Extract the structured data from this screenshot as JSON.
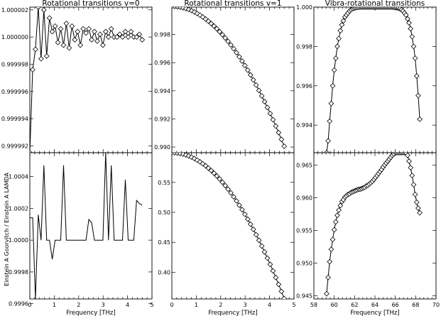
{
  "ylabel": "Einstein A Goorvitch / Einstein A LAMDA",
  "chart_data": [
    {
      "type": "line",
      "panel": "top-left",
      "title": "Rotational transitions v=0",
      "xlim": [
        0,
        5
      ],
      "ylim": [
        0.9999915,
        1.0000022
      ],
      "xticks": [
        0,
        1,
        2,
        3,
        4,
        5
      ],
      "yticks": [
        0.999992,
        0.999994,
        0.999996,
        0.999998,
        1.0,
        1.000002
      ],
      "ytick_labels": [
        "0.999992",
        "0.999994",
        "0.999996",
        "0.999998",
        "1.000000",
        "1.000002"
      ],
      "xtick_labels": [],
      "markers": true,
      "x": [
        0.0,
        0.115,
        0.23,
        0.345,
        0.46,
        0.575,
        0.69,
        0.805,
        0.92,
        1.035,
        1.15,
        1.265,
        1.38,
        1.495,
        1.61,
        1.725,
        1.84,
        1.955,
        2.07,
        2.185,
        2.3,
        2.415,
        2.53,
        2.645,
        2.76,
        2.875,
        2.99,
        3.105,
        3.22,
        3.335,
        3.45,
        3.565,
        3.68,
        3.795,
        3.91,
        4.025,
        4.14,
        4.255,
        4.37,
        4.485,
        4.6
      ],
      "y": [
        0.9999915,
        0.9999976,
        0.9999991,
        1.0000022,
        0.9999984,
        1.000002,
        0.9999986,
        1.0000014,
        1.0000004,
        1.0000008,
        0.9999996,
        1.0000006,
        0.9999994,
        1.000001,
        0.9999992,
        1.0000008,
        0.9999998,
        1.0000004,
        0.9999994,
        1.0000006,
        1.0000003,
        1.0000006,
        0.9999998,
        1.0000004,
        0.9999997,
        1.0000002,
        0.9999994,
        1.0000004,
        1.0,
        1.0000006,
        1.0,
        1.0,
        1.0000002,
        1.0,
        1.0000004,
        1.0,
        1.0000004,
        1.0,
        1.0,
        1.0000002,
        0.9999998
      ]
    },
    {
      "type": "line",
      "panel": "top-center",
      "title": "Rotational transitions v=1",
      "xlim": [
        0,
        5
      ],
      "ylim": [
        0.9896,
        0.99995
      ],
      "xticks": [
        0,
        1,
        2,
        3,
        4,
        5
      ],
      "yticks": [
        0.99,
        0.992,
        0.994,
        0.996,
        0.998
      ],
      "ytick_labels": [
        "0.990",
        "0.992",
        "0.994",
        "0.996",
        "0.998"
      ],
      "xtick_labels": [],
      "markers": true,
      "model": "y = 1 - 0.00047 * x^2",
      "x": [
        0.0,
        0.115,
        0.23,
        0.345,
        0.46,
        0.575,
        0.69,
        0.805,
        0.92,
        1.035,
        1.15,
        1.265,
        1.38,
        1.495,
        1.61,
        1.725,
        1.84,
        1.955,
        2.07,
        2.185,
        2.3,
        2.415,
        2.53,
        2.645,
        2.76,
        2.875,
        2.99,
        3.105,
        3.22,
        3.335,
        3.45,
        3.565,
        3.68,
        3.795,
        3.91,
        4.025,
        4.14,
        4.255,
        4.37,
        4.485,
        4.6
      ]
    },
    {
      "type": "line",
      "panel": "top-right",
      "title": "Vibra-rotational transitions",
      "xlim": [
        58,
        70
      ],
      "ylim": [
        0.9926,
        1.0
      ],
      "xticks": [
        58,
        60,
        62,
        64,
        66,
        68,
        70
      ],
      "yticks": [
        0.994,
        0.996,
        0.998,
        1.0
      ],
      "ytick_labels": [
        "0.994",
        "0.996",
        "0.998",
        "1.000"
      ],
      "xtick_labels": [],
      "markers": true,
      "x": [
        59.25,
        59.4,
        59.55,
        59.7,
        59.85,
        60.0,
        60.15,
        60.3,
        60.45,
        60.6,
        60.75,
        60.9,
        61.05,
        61.2,
        61.35,
        61.5,
        61.65,
        61.8,
        61.95,
        62.1,
        62.25,
        62.4,
        62.55,
        62.7,
        62.85,
        63.0,
        63.15,
        63.3,
        63.45,
        63.6,
        63.75,
        63.9,
        64.05,
        64.2,
        64.35,
        64.5,
        64.65,
        64.8,
        64.95,
        65.1,
        65.25,
        65.4,
        65.55,
        65.7,
        65.85,
        66.0,
        66.15,
        66.3,
        66.45,
        66.6,
        66.75,
        66.9,
        67.05,
        67.2,
        67.35,
        67.5,
        67.65,
        67.8,
        67.95,
        68.1,
        68.25,
        68.4
      ],
      "y": [
        0.9926,
        0.9932,
        0.9942,
        0.9951,
        0.996,
        0.9968,
        0.9974,
        0.998,
        0.9984,
        0.9988,
        0.9991,
        0.9993,
        0.9995,
        0.9996,
        0.9997,
        0.9998,
        0.99987,
        0.99992,
        0.99995,
        0.99997,
        0.99998,
        0.99999,
        1.0,
        1.0,
        1.0,
        1.0,
        1.0,
        1.0,
        1.0,
        1.0,
        1.0,
        1.0,
        1.0,
        1.0,
        1.0,
        1.0,
        1.0,
        1.0,
        1.0,
        1.0,
        1.0,
        1.0,
        1.0,
        1.0,
        0.99999,
        0.99998,
        0.99997,
        0.99995,
        0.99992,
        0.99987,
        0.9998,
        0.9997,
        0.9996,
        0.9994,
        0.9992,
        0.9989,
        0.9985,
        0.998,
        0.9974,
        0.9965,
        0.9955,
        0.9943
      ]
    },
    {
      "type": "line",
      "panel": "bottom-left",
      "title": "",
      "xlim": [
        0,
        5
      ],
      "ylim": [
        0.99963,
        1.00055
      ],
      "xticks": [
        0,
        1,
        2,
        3,
        4,
        5
      ],
      "yticks": [
        0.9996,
        0.9998,
        1.0,
        1.0002,
        1.0004
      ],
      "ytick_labels": [
        "0.9996",
        "0.9998",
        "1.0000",
        "1.0002",
        "1.0004"
      ],
      "xtick_labels": [
        "0",
        "1",
        "2",
        "3",
        "4",
        "5"
      ],
      "xlabel": "Frequency [THz]",
      "markers": false,
      "x": [
        0.0,
        0.115,
        0.23,
        0.345,
        0.46,
        0.575,
        0.69,
        0.805,
        0.92,
        1.035,
        1.15,
        1.265,
        1.38,
        1.495,
        1.61,
        1.725,
        1.84,
        1.955,
        2.07,
        2.185,
        2.3,
        2.415,
        2.53,
        2.645,
        2.76,
        2.875,
        2.99,
        3.105,
        3.22,
        3.335,
        3.45,
        3.565,
        3.68,
        3.795,
        3.91,
        4.025,
        4.14,
        4.255,
        4.37,
        4.485,
        4.6
      ],
      "y": [
        1.00014,
        1.00014,
        0.99963,
        1.00016,
        1.0,
        1.00047,
        1.0,
        1.0,
        0.99988,
        1.0,
        1.0,
        1.0,
        1.00047,
        1.0,
        1.0,
        1.0,
        1.0,
        1.0,
        1.0,
        1.0,
        1.0,
        1.00013,
        1.00011,
        1.0,
        1.0,
        1.0,
        1.0,
        1.00055,
        1.0,
        1.00047,
        1.0,
        1.0,
        1.0,
        1.0,
        1.00038,
        1.0,
        1.0,
        1.0,
        1.00025,
        1.00023,
        1.00022
      ]
    },
    {
      "type": "line",
      "panel": "bottom-center",
      "title": "",
      "xlim": [
        0,
        5
      ],
      "ylim": [
        0.3555,
        0.5995
      ],
      "xticks": [
        0,
        1,
        2,
        3,
        4,
        5
      ],
      "yticks": [
        0.4,
        0.45,
        0.5,
        0.55
      ],
      "ytick_labels": [
        "0.40",
        "0.45",
        "0.50",
        "0.55"
      ],
      "xtick_labels": [
        "0",
        "1",
        "2",
        "3",
        "4",
        "5"
      ],
      "xlabel": "Frequency [THz]",
      "markers": true,
      "model": "y = 0.5995 - 0.0115 * x^2",
      "x": [
        0.0,
        0.115,
        0.23,
        0.345,
        0.46,
        0.575,
        0.69,
        0.805,
        0.92,
        1.035,
        1.15,
        1.265,
        1.38,
        1.495,
        1.61,
        1.725,
        1.84,
        1.955,
        2.07,
        2.185,
        2.3,
        2.415,
        2.53,
        2.645,
        2.76,
        2.875,
        2.99,
        3.105,
        3.22,
        3.335,
        3.45,
        3.565,
        3.68,
        3.795,
        3.91,
        4.025,
        4.14,
        4.255,
        4.37,
        4.485,
        4.6
      ]
    },
    {
      "type": "line",
      "panel": "bottom-right",
      "title": "",
      "xlim": [
        58,
        70
      ],
      "ylim": [
        0.9445,
        0.9669
      ],
      "xticks": [
        58,
        60,
        62,
        64,
        66,
        68,
        70
      ],
      "yticks": [
        0.945,
        0.95,
        0.955,
        0.96,
        0.965
      ],
      "ytick_labels": [
        "0.945",
        "0.950",
        "0.955",
        "0.960",
        "0.965"
      ],
      "xtick_labels": [
        "58",
        "60",
        "62",
        "64",
        "66",
        "68",
        "70"
      ],
      "xlabel": "Frequency [THz]",
      "markers": true,
      "x": [
        59.25,
        59.4,
        59.55,
        59.7,
        59.85,
        60.0,
        60.15,
        60.3,
        60.45,
        60.6,
        60.75,
        60.9,
        61.05,
        61.2,
        61.35,
        61.5,
        61.65,
        61.8,
        61.95,
        62.1,
        62.25,
        62.4,
        62.55,
        62.7,
        62.85,
        63.0,
        63.15,
        63.3,
        63.45,
        63.6,
        63.75,
        63.9,
        64.05,
        64.2,
        64.35,
        64.5,
        64.65,
        64.8,
        64.95,
        65.1,
        65.25,
        65.4,
        65.55,
        65.7,
        65.85,
        66.0,
        66.15,
        66.3,
        66.45,
        66.6,
        66.75,
        66.9,
        67.05,
        67.2,
        67.35,
        67.5,
        67.65,
        67.8,
        67.95,
        68.1,
        68.25,
        68.4
      ],
      "y": [
        0.9453,
        0.9478,
        0.9502,
        0.9521,
        0.9536,
        0.9551,
        0.9563,
        0.9573,
        0.9581,
        0.9588,
        0.9594,
        0.9597,
        0.9601,
        0.9603,
        0.9605,
        0.9606,
        0.9608,
        0.9609,
        0.961,
        0.9611,
        0.9612,
        0.9613,
        0.9613,
        0.9614,
        0.9615,
        0.9616,
        0.9618,
        0.9619,
        0.9621,
        0.9623,
        0.9625,
        0.9628,
        0.9631,
        0.9634,
        0.9637,
        0.964,
        0.9643,
        0.9647,
        0.965,
        0.9653,
        0.9656,
        0.9659,
        0.9662,
        0.9665,
        0.9667,
        0.9669,
        0.9669,
        0.9669,
        0.9669,
        0.9669,
        0.9669,
        0.9669,
        0.9669,
        0.9665,
        0.9656,
        0.9646,
        0.9634,
        0.962,
        0.9605,
        0.9593,
        0.9584,
        0.9577
      ]
    }
  ]
}
